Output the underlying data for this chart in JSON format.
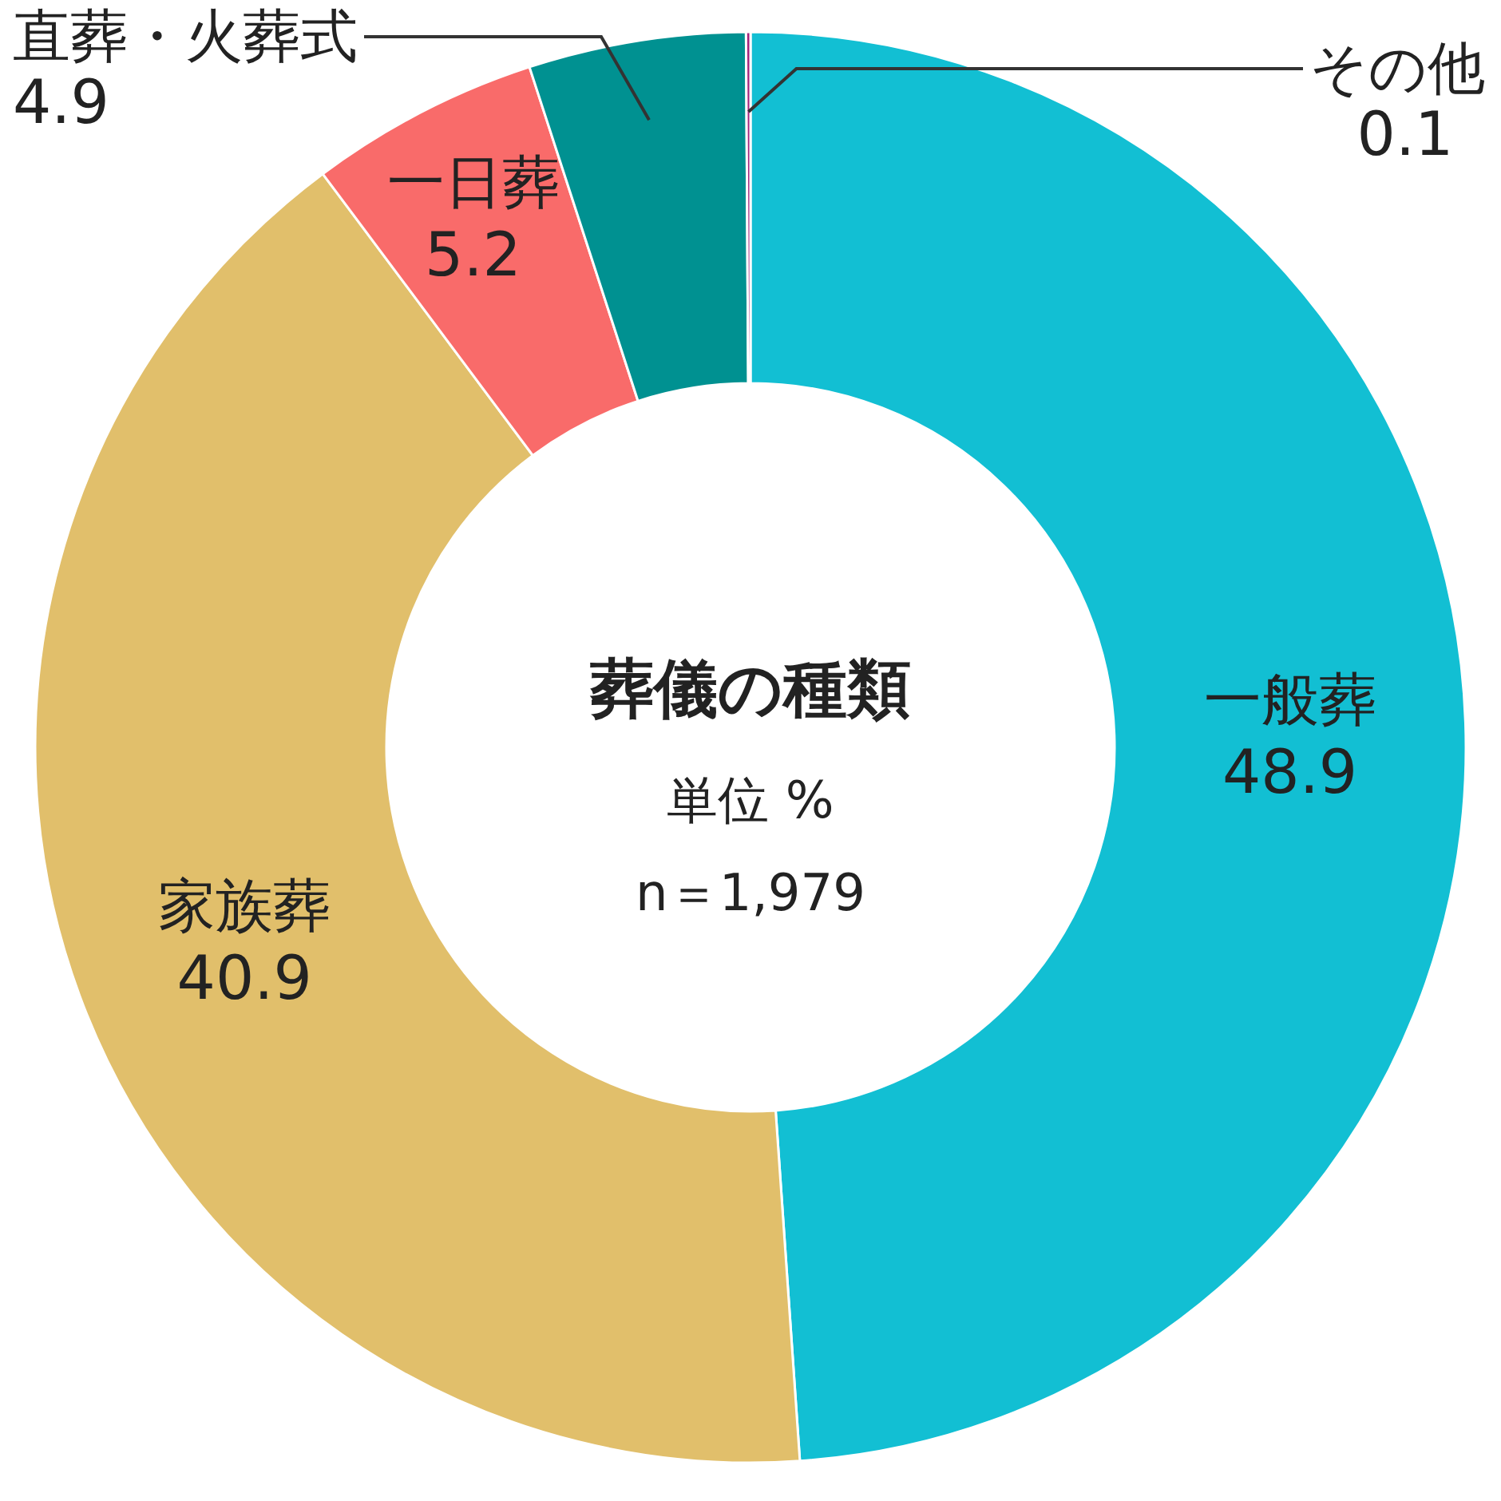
{
  "chart_data": {
    "type": "donut",
    "title": "葬儀の種類",
    "subtitle": "単位 %",
    "annotations": [
      "n＝1,979"
    ],
    "categories": [
      "一般葬",
      "家族葬",
      "一日葬",
      "直葬・火葬式",
      "その他"
    ],
    "values": [
      48.9,
      40.9,
      5.2,
      4.9,
      0.1
    ],
    "colors": [
      "#12bfd3",
      "#e1bf6b",
      "#f96b6a",
      "#009191",
      "#a3227b"
    ],
    "data_labels": true
  }
}
